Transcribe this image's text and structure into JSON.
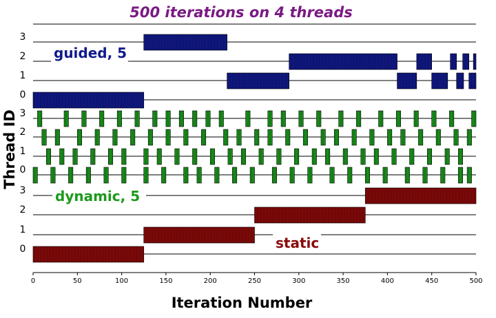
{
  "chart_data": {
    "type": "bar",
    "subtype": "gantt",
    "title": "500 iterations on 4 threads",
    "xlabel": "Iteration Number",
    "ylabel": "Thread ID",
    "xlim": [
      0,
      500
    ],
    "xticks": [
      0,
      50,
      100,
      150,
      200,
      250,
      300,
      350,
      400,
      450,
      500
    ],
    "threads": [
      0,
      1,
      2,
      3
    ],
    "grid": false,
    "colors": {
      "title": "#7a1a84",
      "guided": "#111a8c",
      "dynamic": "#1c9a1c",
      "static": "#8a0a0a"
    },
    "series": [
      {
        "name": "guided, 5",
        "schedule": "guided",
        "chunk": 5,
        "label_color": "#111a8c",
        "bar_color": "#111a8c",
        "threads": [
          {
            "thread": 0,
            "intervals": [
              [
                0,
                125
              ]
            ]
          },
          {
            "thread": 1,
            "intervals": [
              [
                219,
                289
              ],
              [
                411,
                433
              ],
              [
                450,
                468
              ],
              [
                478,
                486
              ],
              [
                492,
                500
              ]
            ]
          },
          {
            "thread": 2,
            "intervals": [
              [
                289,
                411
              ],
              [
                433,
                450
              ],
              [
                471,
                478
              ],
              [
                485,
                492
              ],
              [
                497,
                500
              ]
            ]
          },
          {
            "thread": 3,
            "intervals": [
              [
                125,
                219
              ]
            ]
          }
        ]
      },
      {
        "name": "dynamic, 5",
        "schedule": "dynamic",
        "chunk": 5,
        "label_color": "#1c9a1c",
        "bar_color": "#1c9a1c",
        "threads": [
          {
            "thread": 0,
            "intervals": [
              [
                0,
                5
              ],
              [
                20,
                25
              ],
              [
                40,
                45
              ],
              [
                60,
                65
              ],
              [
                80,
                85
              ],
              [
                100,
                105
              ],
              [
                125,
                130
              ],
              [
                145,
                150
              ],
              [
                170,
                175
              ],
              [
                185,
                190
              ],
              [
                205,
                210
              ],
              [
                225,
                230
              ],
              [
                245,
                250
              ],
              [
                270,
                275
              ],
              [
                290,
                295
              ],
              [
                310,
                315
              ],
              [
                335,
                340
              ],
              [
                355,
                360
              ],
              [
                375,
                380
              ],
              [
                395,
                400
              ],
              [
                420,
                425
              ],
              [
                440,
                445
              ],
              [
                460,
                465
              ],
              [
                480,
                485
              ],
              [
                490,
                495
              ]
            ]
          },
          {
            "thread": 1,
            "intervals": [
              [
                15,
                20
              ],
              [
                30,
                35
              ],
              [
                45,
                50
              ],
              [
                65,
                70
              ],
              [
                85,
                90
              ],
              [
                100,
                105
              ],
              [
                125,
                130
              ],
              [
                140,
                145
              ],
              [
                160,
                165
              ],
              [
                180,
                185
              ],
              [
                200,
                205
              ],
              [
                220,
                225
              ],
              [
                235,
                240
              ],
              [
                255,
                260
              ],
              [
                275,
                280
              ],
              [
                295,
                300
              ],
              [
                315,
                320
              ],
              [
                330,
                335
              ],
              [
                350,
                355
              ],
              [
                370,
                375
              ],
              [
                385,
                390
              ],
              [
                405,
                410
              ],
              [
                425,
                430
              ],
              [
                445,
                450
              ],
              [
                465,
                470
              ],
              [
                480,
                485
              ]
            ]
          },
          {
            "thread": 2,
            "intervals": [
              [
                10,
                15
              ],
              [
                25,
                30
              ],
              [
                50,
                55
              ],
              [
                70,
                75
              ],
              [
                90,
                95
              ],
              [
                110,
                115
              ],
              [
                130,
                135
              ],
              [
                150,
                155
              ],
              [
                170,
                175
              ],
              [
                190,
                195
              ],
              [
                215,
                220
              ],
              [
                230,
                235
              ],
              [
                250,
                255
              ],
              [
                265,
                270
              ],
              [
                285,
                290
              ],
              [
                305,
                310
              ],
              [
                325,
                330
              ],
              [
                340,
                345
              ],
              [
                360,
                365
              ],
              [
                380,
                385
              ],
              [
                400,
                405
              ],
              [
                415,
                420
              ],
              [
                435,
                440
              ],
              [
                455,
                460
              ],
              [
                475,
                480
              ],
              [
                490,
                495
              ]
            ]
          },
          {
            "thread": 3,
            "intervals": [
              [
                5,
                10
              ],
              [
                35,
                40
              ],
              [
                55,
                60
              ],
              [
                75,
                80
              ],
              [
                95,
                100
              ],
              [
                115,
                120
              ],
              [
                135,
                140
              ],
              [
                150,
                155
              ],
              [
                165,
                170
              ],
              [
                180,
                185
              ],
              [
                195,
                200
              ],
              [
                210,
                215
              ],
              [
                240,
                245
              ],
              [
                265,
                270
              ],
              [
                280,
                285
              ],
              [
                300,
                305
              ],
              [
                320,
                325
              ],
              [
                345,
                350
              ],
              [
                365,
                370
              ],
              [
                390,
                395
              ],
              [
                410,
                415
              ],
              [
                430,
                435
              ],
              [
                450,
                455
              ],
              [
                470,
                475
              ],
              [
                495,
                500
              ]
            ]
          }
        ]
      },
      {
        "name": "static",
        "schedule": "static",
        "label_color": "#8a0a0a",
        "bar_color": "#8a0a0a",
        "threads": [
          {
            "thread": 0,
            "intervals": [
              [
                0,
                125
              ]
            ]
          },
          {
            "thread": 1,
            "intervals": [
              [
                125,
                250
              ]
            ]
          },
          {
            "thread": 2,
            "intervals": [
              [
                250,
                375
              ]
            ]
          },
          {
            "thread": 3,
            "intervals": [
              [
                375,
                500
              ]
            ]
          }
        ]
      }
    ]
  }
}
